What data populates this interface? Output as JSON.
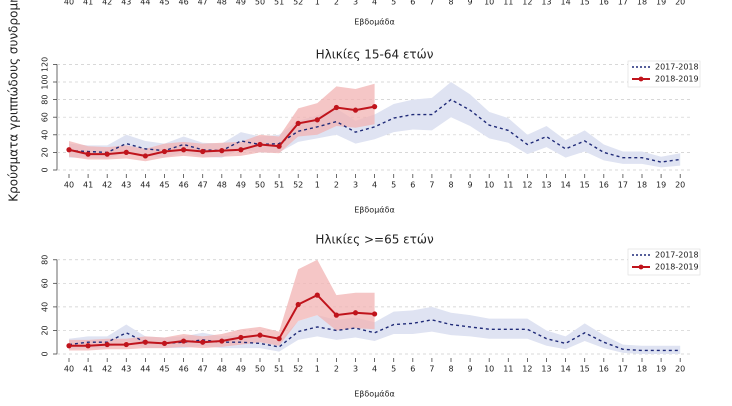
{
  "ylabel": "Κρούσματα γριππώδους συνδρομής",
  "chart_data": [
    {
      "type": "axis-fragment",
      "xlabel": "Εβδομάδα",
      "categories": [
        "40",
        "41",
        "42",
        "43",
        "44",
        "45",
        "46",
        "47",
        "48",
        "49",
        "50",
        "51",
        "52",
        "1",
        "2",
        "3",
        "4",
        "5",
        "6",
        "7",
        "8",
        "9",
        "10",
        "11",
        "12",
        "13",
        "14",
        "15",
        "16",
        "17",
        "18",
        "19",
        "20"
      ]
    },
    {
      "type": "line",
      "title": "Ηλικίες 15-64 ετών",
      "xlabel": "Εβδομάδα",
      "legend": "top-right",
      "grid": true,
      "categories": [
        "40",
        "41",
        "42",
        "43",
        "44",
        "45",
        "46",
        "47",
        "48",
        "49",
        "50",
        "51",
        "52",
        "1",
        "2",
        "3",
        "4",
        "5",
        "6",
        "7",
        "8",
        "9",
        "10",
        "11",
        "12",
        "13",
        "14",
        "15",
        "16",
        "17",
        "18",
        "19",
        "20"
      ],
      "ylim": [
        0,
        125
      ],
      "yticks": [
        0,
        20,
        40,
        60,
        80,
        100,
        120
      ],
      "series": [
        {
          "name": "2017-2018",
          "color": "#1f2a78",
          "band_color": "#dfe3f2",
          "dashed": true,
          "values": [
            22,
            21,
            20,
            30,
            24,
            22,
            29,
            23,
            22,
            33,
            29,
            30,
            44,
            49,
            55,
            43,
            49,
            59,
            63,
            63,
            80,
            68,
            51,
            45,
            29,
            38,
            24,
            33,
            20,
            14,
            14,
            9,
            12
          ],
          "lower": [
            14,
            14,
            13,
            20,
            16,
            14,
            20,
            15,
            14,
            23,
            20,
            20,
            32,
            36,
            40,
            30,
            35,
            43,
            46,
            45,
            60,
            50,
            36,
            31,
            18,
            26,
            14,
            21,
            11,
            7,
            7,
            3,
            5
          ],
          "upper": [
            30,
            28,
            28,
            40,
            33,
            30,
            38,
            31,
            30,
            43,
            38,
            40,
            56,
            62,
            70,
            56,
            63,
            75,
            80,
            82,
            100,
            86,
            66,
            59,
            40,
            50,
            34,
            45,
            29,
            21,
            21,
            15,
            19
          ]
        },
        {
          "name": "2018-2019",
          "color": "#c0141c",
          "band_color": "#f2b3b3",
          "dashed": false,
          "values": [
            23,
            18,
            18,
            20,
            16,
            21,
            23,
            21,
            22,
            23,
            29,
            27,
            53,
            57,
            71,
            68,
            72,
            null,
            null,
            null,
            null,
            null,
            null,
            null,
            null,
            null,
            null,
            null,
            null,
            null,
            null,
            null,
            null
          ],
          "lower": [
            15,
            12,
            12,
            13,
            10,
            14,
            16,
            14,
            15,
            16,
            20,
            19,
            38,
            40,
            50,
            48,
            52,
            null,
            null,
            null,
            null,
            null,
            null,
            null,
            null,
            null,
            null,
            null,
            null,
            null,
            null,
            null,
            null
          ],
          "upper": [
            33,
            27,
            26,
            28,
            24,
            30,
            32,
            30,
            31,
            32,
            40,
            38,
            70,
            76,
            95,
            92,
            98,
            null,
            null,
            null,
            null,
            null,
            null,
            null,
            null,
            null,
            null,
            null,
            null,
            null,
            null,
            null,
            null
          ]
        }
      ]
    },
    {
      "type": "line",
      "title": "Ηλικίες >=65 ετών",
      "xlabel": "Εβδομάδα",
      "legend": "top-right",
      "grid": true,
      "categories": [
        "40",
        "41",
        "42",
        "43",
        "44",
        "45",
        "46",
        "47",
        "48",
        "49",
        "50",
        "51",
        "52",
        "1",
        "2",
        "3",
        "4",
        "5",
        "6",
        "7",
        "8",
        "9",
        "10",
        "11",
        "12",
        "13",
        "14",
        "15",
        "16",
        "17",
        "18",
        "19",
        "20"
      ],
      "ylim": [
        0,
        90
      ],
      "yticks": [
        0,
        20,
        40,
        60,
        80
      ],
      "series": [
        {
          "name": "2017-2018",
          "color": "#1f2a78",
          "band_color": "#dfe3f2",
          "dashed": true,
          "values": [
            8,
            10,
            10,
            18,
            10,
            9,
            10,
            12,
            10,
            10,
            9,
            6,
            19,
            23,
            20,
            22,
            18,
            25,
            26,
            29,
            25,
            23,
            21,
            21,
            21,
            13,
            9,
            18,
            10,
            4,
            3,
            3,
            3
          ],
          "lower": [
            4,
            5,
            5,
            11,
            5,
            5,
            5,
            7,
            5,
            5,
            5,
            2,
            12,
            15,
            12,
            14,
            11,
            17,
            17,
            19,
            16,
            15,
            13,
            13,
            13,
            7,
            4,
            11,
            5,
            1,
            0,
            0,
            0
          ],
          "upper": [
            13,
            15,
            15,
            25,
            15,
            14,
            15,
            18,
            15,
            16,
            14,
            11,
            28,
            33,
            29,
            31,
            27,
            36,
            37,
            40,
            35,
            33,
            30,
            30,
            30,
            20,
            15,
            26,
            16,
            8,
            7,
            7,
            7
          ]
        },
        {
          "name": "2018-2019",
          "color": "#c0141c",
          "band_color": "#f2b3b3",
          "dashed": false,
          "values": [
            7,
            7,
            8,
            8,
            10,
            9,
            11,
            10,
            11,
            14,
            16,
            13,
            42,
            50,
            33,
            35,
            34,
            null,
            null,
            null,
            null,
            null,
            null,
            null,
            null,
            null,
            null,
            null,
            null,
            null,
            null,
            null,
            null
          ],
          "lower": [
            3,
            3,
            4,
            4,
            5,
            5,
            6,
            5,
            6,
            8,
            10,
            7,
            28,
            33,
            20,
            22,
            21,
            null,
            null,
            null,
            null,
            null,
            null,
            null,
            null,
            null,
            null,
            null,
            null,
            null,
            null,
            null,
            null
          ],
          "upper": [
            12,
            12,
            13,
            13,
            15,
            14,
            17,
            15,
            17,
            21,
            23,
            19,
            72,
            80,
            50,
            52,
            52,
            null,
            null,
            null,
            null,
            null,
            null,
            null,
            null,
            null,
            null,
            null,
            null,
            null,
            null,
            null,
            null
          ]
        }
      ]
    }
  ]
}
